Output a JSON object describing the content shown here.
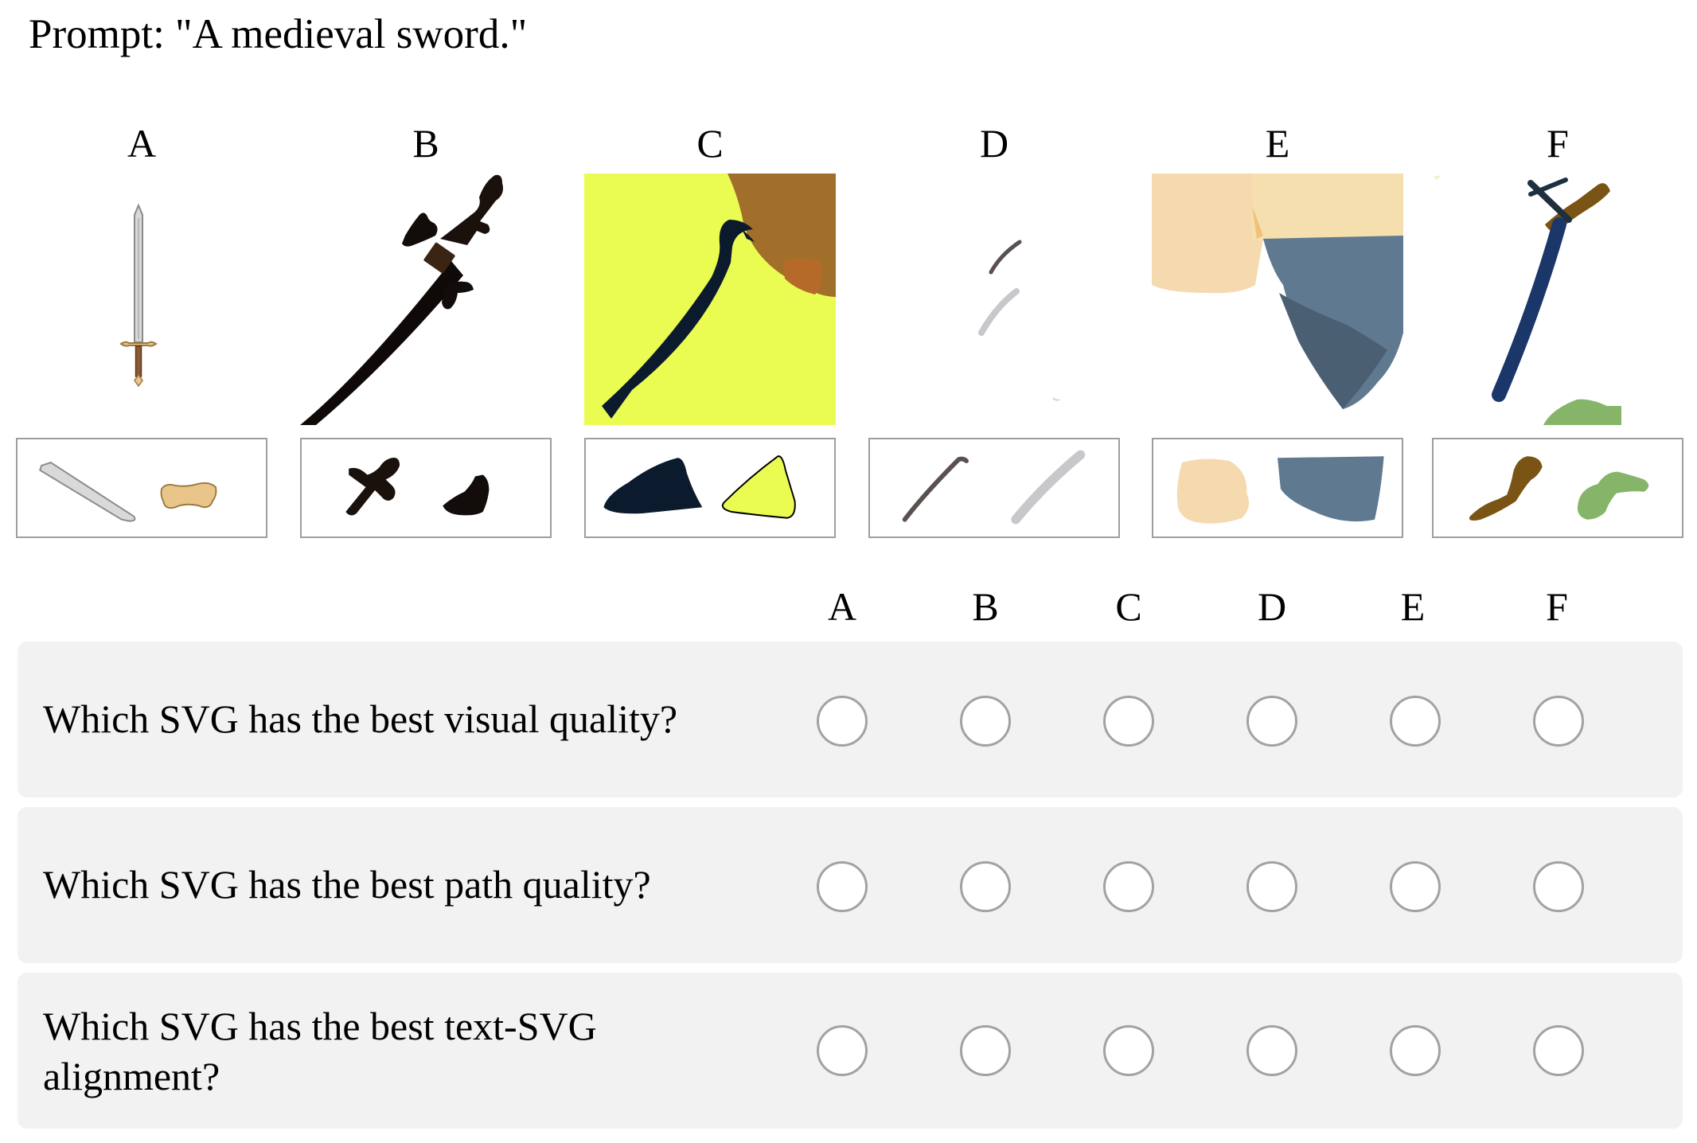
{
  "prompt": "Prompt: \"A medieval sword.\"",
  "options": [
    "A",
    "B",
    "C",
    "D",
    "E",
    "F"
  ],
  "columns": [
    "A",
    "B",
    "C",
    "D",
    "E",
    "F"
  ],
  "questions": [
    {
      "text": "Which SVG has the best visual quality?",
      "selected": null
    },
    {
      "text": "Which SVG has the best path quality?",
      "selected": null
    },
    {
      "text": "Which SVG has the best text-SVG alignment?",
      "selected": null
    }
  ],
  "colors": {
    "row_background": "#f2f2f2",
    "radio_border": "#a2a2a2",
    "panel_border": "#9e9e9e"
  }
}
